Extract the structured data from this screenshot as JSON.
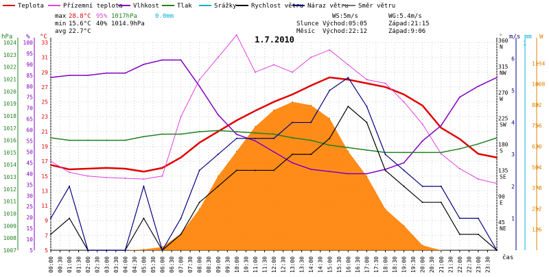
{
  "chart_data": {
    "type": "line",
    "title": "1.7.2010",
    "legend": [
      {
        "label": "Teplota",
        "color": "#e00000"
      },
      {
        "label": "Přízemní teplota",
        "color": "#e040e0"
      },
      {
        "label": "Vlhkost",
        "color": "#8000c0"
      },
      {
        "label": "Tlak",
        "color": "#208020"
      },
      {
        "label": "Srážky",
        "color": "#00b0d0"
      },
      {
        "label": "Rychlost větru",
        "color": "#000000"
      },
      {
        "label": "Náraz větru",
        "color": "#000080"
      },
      {
        "label": "Směr větru",
        "color": "#707070"
      }
    ],
    "stats": {
      "max_label": "max",
      "min_label": "min",
      "avg_label": "avg",
      "max_temp": "28.8°C",
      "max_hum": "95%",
      "max_press": "1017hPa",
      "max_rain": "0.0mm",
      "min_temp": "15.6°C",
      "min_hum": "40%",
      "min_press": "1014.9hPa",
      "avg_temp": "22.7°C"
    },
    "wind_info": {
      "ws": "WS:5m/s",
      "wg": "WG:5.4m/s"
    },
    "astro": {
      "sun_label": "Slunce",
      "sun_rise": "Východ:05:05",
      "sun_set": "Západ:21:15",
      "moon_label": "Měsíc",
      "moon_rise": "Východ:22:12",
      "moon_set": "Západ:9:06"
    },
    "axes": {
      "x_label": "čas",
      "x_ticks": [
        "00:00",
        "00:30",
        "01:00",
        "01:30",
        "02:00",
        "02:30",
        "03:00",
        "03:30",
        "04:00",
        "04:30",
        "05:00",
        "05:30",
        "06:00",
        "06:30",
        "07:00",
        "07:30",
        "08:00",
        "08:30",
        "09:00",
        "09:30",
        "10:00",
        "10:30",
        "11:00",
        "11:30",
        "12:00",
        "12:30",
        "13:00",
        "13:30",
        "14:00",
        "14:30",
        "15:00",
        "15:30",
        "16:00",
        "16:30",
        "17:00",
        "17:30",
        "18:00",
        "18:30",
        "19:00",
        "19:30",
        "20:00",
        "20:30",
        "21:00",
        "21:30",
        "22:00",
        "22:30",
        "23:00",
        "23:30"
      ],
      "hpa_unit": "hPa",
      "hpa_ticks": [
        "1007",
        "1008",
        "1009",
        "1010",
        "1011",
        "1012",
        "1013",
        "1014",
        "1015",
        "1016",
        "1017",
        "1018",
        "1019",
        "1020",
        "1021",
        "1022",
        "1023",
        "1024"
      ],
      "pct_unit": "%",
      "pct_ticks": [
        "5",
        "10",
        "15",
        "20",
        "25",
        "30",
        "35",
        "40",
        "45",
        "50",
        "55",
        "60",
        "65",
        "70",
        "75",
        "80",
        "85",
        "90",
        "95",
        "100"
      ],
      "temp_unit": "°C",
      "temp_ticks": [
        "5",
        "7",
        "9",
        "11",
        "13",
        "15",
        "17",
        "19",
        "21",
        "23",
        "25",
        "27",
        "29",
        "31",
        "33"
      ],
      "dir_unit": "°",
      "dir_ticks": [
        {
          "deg": "360",
          "dir": "N"
        },
        {
          "deg": "315",
          "dir": "NW"
        },
        {
          "deg": "270",
          "dir": "W"
        },
        {
          "deg": "225",
          "dir": "SW"
        },
        {
          "deg": "180",
          "dir": "S"
        },
        {
          "deg": "135",
          "dir": "SE"
        },
        {
          "deg": "90",
          "dir": "E"
        },
        {
          "deg": "45",
          "dir": "NE"
        }
      ],
      "ms_unit": "m/s",
      "ms_ticks": [
        "1",
        "2",
        "3",
        "4",
        "5",
        "6"
      ],
      "mm_unit": "mm",
      "mm_top": "1",
      "w_unit": "W",
      "w_ticks": [
        "126",
        "252",
        "378",
        "504",
        "630",
        "756",
        "882",
        "1008",
        "1134"
      ]
    },
    "series": [
      {
        "name": "Teplota",
        "unit": "°C",
        "x": [
          0,
          1,
          2,
          3,
          4,
          5,
          6,
          7,
          8,
          9,
          10,
          11,
          12,
          13,
          14,
          15,
          16,
          17,
          18,
          19,
          20,
          21,
          22,
          23,
          24
        ],
        "values": [
          16.5,
          15.9,
          16.0,
          16.1,
          16.0,
          15.6,
          16.1,
          17.5,
          19.5,
          21.0,
          22.5,
          23.8,
          25.0,
          26.0,
          27.2,
          28.3,
          28.0,
          27.5,
          27.0,
          26.0,
          24.5,
          21.5,
          20.0,
          18.0,
          17.5
        ]
      },
      {
        "name": "Přízemní teplota",
        "unit": "°C",
        "x": [
          0,
          1,
          2,
          3,
          4,
          5,
          6,
          7,
          8,
          9,
          10,
          11,
          12,
          13,
          14,
          15,
          16,
          17,
          18,
          19,
          20,
          21,
          22,
          23,
          24
        ],
        "values": [
          17.0,
          15.5,
          15.0,
          14.8,
          14.7,
          14.6,
          15.0,
          23.0,
          28.0,
          31.0,
          34.0,
          29.0,
          30.0,
          29.0,
          31.0,
          32.0,
          30.0,
          28.0,
          27.5,
          25.0,
          22.0,
          18.0,
          16.0,
          14.6,
          14.0
        ]
      },
      {
        "name": "Vlhkost",
        "unit": "%",
        "x": [
          0,
          1,
          2,
          3,
          4,
          5,
          6,
          7,
          8,
          9,
          10,
          11,
          12,
          13,
          14,
          15,
          16,
          17,
          18,
          19,
          20,
          21,
          22,
          23,
          24
        ],
        "values": [
          84,
          85,
          85,
          86,
          86,
          90,
          92,
          92,
          80,
          67,
          58,
          55,
          50,
          45,
          42,
          41,
          40,
          40,
          42,
          45,
          55,
          62,
          75,
          80,
          84
        ]
      },
      {
        "name": "Tlak",
        "unit": "hPa",
        "x": [
          0,
          1,
          2,
          3,
          4,
          5,
          6,
          7,
          8,
          9,
          10,
          11,
          12,
          13,
          14,
          15,
          16,
          17,
          18,
          19,
          20,
          21,
          22,
          23,
          24
        ],
        "values": [
          1016.2,
          1016.0,
          1016.0,
          1016.0,
          1016.0,
          1016.3,
          1016.5,
          1016.5,
          1016.7,
          1016.8,
          1016.7,
          1016.6,
          1016.5,
          1016.2,
          1016.0,
          1015.6,
          1015.4,
          1015.2,
          1015.0,
          1015.0,
          1015.0,
          1015.0,
          1015.3,
          1015.7,
          1016.2
        ]
      },
      {
        "name": "Rychlost větru",
        "unit": "m/s",
        "x": [
          0,
          1,
          2,
          3,
          4,
          5,
          6,
          7,
          8,
          9,
          10,
          11,
          12,
          13,
          14,
          15,
          16,
          17,
          18,
          19,
          20,
          21,
          22,
          23,
          24
        ],
        "values": [
          0.5,
          1.0,
          0.0,
          0.0,
          0.0,
          1.0,
          0.0,
          0.5,
          1.5,
          2.0,
          2.5,
          2.5,
          2.5,
          3.0,
          3.0,
          3.5,
          4.5,
          4.0,
          2.5,
          2.0,
          1.5,
          1.5,
          0.5,
          0.5,
          0.0
        ]
      },
      {
        "name": "Náraz větru",
        "unit": "m/s",
        "x": [
          0,
          1,
          2,
          3,
          4,
          5,
          6,
          7,
          8,
          9,
          10,
          11,
          12,
          13,
          14,
          15,
          16,
          17,
          18,
          19,
          20,
          21,
          22,
          23,
          24
        ],
        "values": [
          1.0,
          2.0,
          0.0,
          0.0,
          0.0,
          2.0,
          0.0,
          1.0,
          2.5,
          3.0,
          3.5,
          3.5,
          3.5,
          4.0,
          4.0,
          5.0,
          5.4,
          4.5,
          3.0,
          2.5,
          2.0,
          2.0,
          1.0,
          1.0,
          0.0
        ]
      },
      {
        "name": "Sluneční záření",
        "unit": "W",
        "x": [
          4,
          5,
          6,
          7,
          8,
          9,
          10,
          11,
          12,
          13,
          14,
          15,
          16,
          17,
          18,
          19,
          20,
          21
        ],
        "values": [
          0,
          5,
          20,
          100,
          250,
          450,
          600,
          750,
          850,
          900,
          880,
          800,
          600,
          450,
          250,
          150,
          30,
          0
        ]
      }
    ]
  }
}
